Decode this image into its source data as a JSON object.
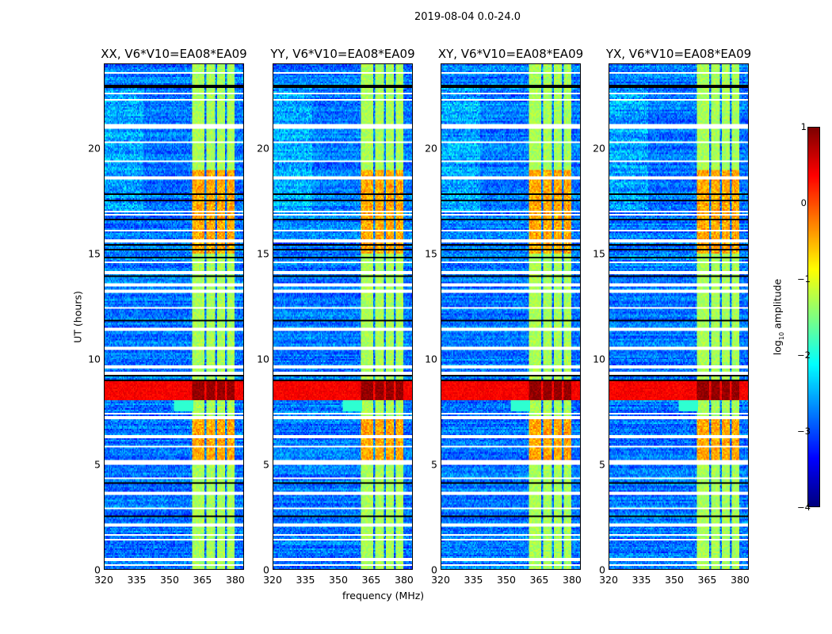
{
  "chart_data": {
    "type": "heatmap",
    "title": "2019-08-04 0.0-24.0",
    "xlabel": "frequency (MHz)",
    "ylabel": "UT (hours)",
    "xlim": [
      320,
      384
    ],
    "ylim": [
      0,
      24
    ],
    "xticks": [
      "320",
      "335",
      "350",
      "365",
      "380"
    ],
    "yticks": [
      "0",
      "5",
      "10",
      "15",
      "20"
    ],
    "colorbar": {
      "label_prefix": "log",
      "label_sub": "10",
      "label_suffix": " amplitude",
      "range": [
        -4,
        1
      ],
      "ticks": [
        "1",
        "0",
        "−1",
        "−2",
        "−3",
        "−4"
      ],
      "colormap": "jet"
    },
    "panels": [
      {
        "title": "XX, V6*V10=EA08*EA09",
        "seed": 1
      },
      {
        "title": "YY, V6*V10=EA08*EA09",
        "seed": 2
      },
      {
        "title": "XY, V6*V10=EA08*EA09",
        "seed": 3
      },
      {
        "title": "YX, V6*V10=EA08*EA09",
        "seed": 4
      }
    ],
    "model": {
      "background_level": -2.8,
      "rfi_band_mhz": [
        360.5,
        380
      ],
      "rfi_gaps_mhz": [
        366.5,
        371.5,
        376
      ],
      "rfi_level": -1.3,
      "rfi_strong_hours": [
        [
          5,
          7.2
        ],
        [
          15,
          19
        ]
      ],
      "event_hours": [
        8.0,
        8.9
      ],
      "event_level": 0.4,
      "flagged_hours": [
        0.2,
        0.45,
        1.4,
        1.6,
        2.1,
        2.9,
        3.6,
        4.3,
        5.0,
        5.1,
        5.8,
        6.3,
        7.2,
        7.4,
        9.3,
        9.6,
        10.5,
        11.4,
        12.4,
        13.2,
        13.5,
        14.1,
        14.6,
        15.6,
        16.1,
        16.85,
        17.0,
        18.6,
        19.4,
        20.3,
        21.0,
        21.1,
        22.3,
        22.6,
        23.6
      ],
      "dark_hours": [
        2.5,
        2.4,
        3.9,
        4.1,
        7.8,
        8.95,
        9.2,
        11.8,
        13.9,
        14.8,
        15.2,
        15.4,
        16.6,
        17.5,
        17.8,
        18.0,
        22.9,
        23.0
      ]
    }
  }
}
